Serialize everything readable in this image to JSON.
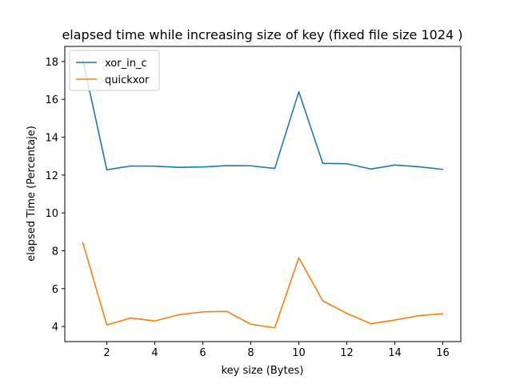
{
  "chart_data": {
    "type": "line",
    "title": "elapsed time while increasing size of key (fixed file size 1024 )",
    "xlabel": "key size (Bytes)",
    "ylabel": "elapsed Time (Percentaje)",
    "x": [
      1,
      2,
      3,
      4,
      5,
      6,
      7,
      8,
      9,
      10,
      11,
      12,
      13,
      14,
      15,
      16
    ],
    "xlim": [
      0.25,
      16.75
    ],
    "ylim": [
      3.2,
      18.8
    ],
    "xticks": [
      2,
      4,
      6,
      8,
      10,
      12,
      14,
      16
    ],
    "yticks": [
      4,
      6,
      8,
      10,
      12,
      14,
      16,
      18
    ],
    "grid": false,
    "legend_position": "top-left",
    "series": [
      {
        "name": "xor_in_c",
        "color": "#1f77b4",
        "values": [
          18.1,
          12.28,
          12.48,
          12.47,
          12.41,
          12.43,
          12.5,
          12.49,
          12.35,
          16.4,
          12.62,
          12.6,
          12.32,
          12.53,
          12.44,
          12.3
        ]
      },
      {
        "name": "quickxor",
        "color": "#ff7f0e",
        "values": [
          8.43,
          4.08,
          4.45,
          4.29,
          4.62,
          4.77,
          4.8,
          4.12,
          3.93,
          7.63,
          5.35,
          4.69,
          4.15,
          4.34,
          4.57,
          4.67
        ]
      }
    ]
  }
}
